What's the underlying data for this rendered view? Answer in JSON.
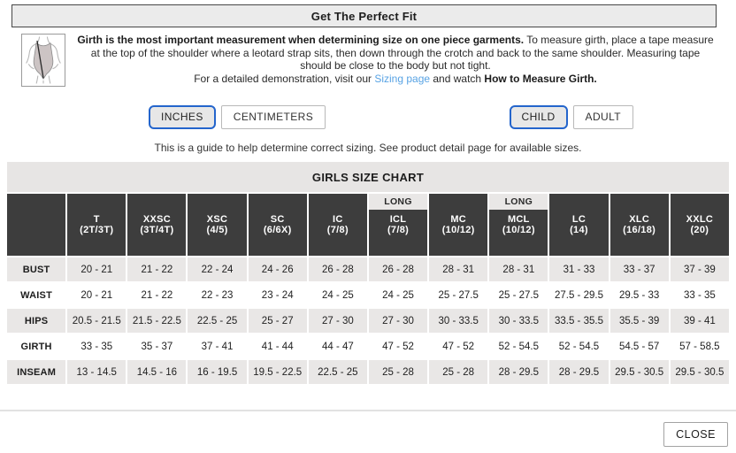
{
  "dialog": {
    "title": "Get The Perfect Fit",
    "intro_bold": "Girth is the most important measurement when determining size on one piece garments.",
    "intro_rest": " To measure girth, place a tape measure at the top of the shoulder where a leotard strap sits, then down through the crotch and back to the same shoulder. Measuring tape should be close to the body but not tight.",
    "demo_prefix": "For a detailed demonstration, visit our ",
    "demo_link": "Sizing page",
    "demo_middle": " and watch ",
    "demo_bold": "How to Measure Girth.",
    "note": "This is a guide to help determine correct sizing. See product detail page for available sizes."
  },
  "toggles": {
    "units": [
      {
        "label": "INCHES",
        "active": true
      },
      {
        "label": "CENTIMETERS",
        "active": false
      }
    ],
    "age": [
      {
        "label": "CHILD",
        "active": true
      },
      {
        "label": "ADULT",
        "active": false
      }
    ]
  },
  "chart": {
    "title": "GIRLS SIZE CHART",
    "long_label": "LONG",
    "columns": [
      {
        "name": "T",
        "size": "(2T/3T)",
        "long": false
      },
      {
        "name": "XXSC",
        "size": "(3T/4T)",
        "long": false
      },
      {
        "name": "XSC",
        "size": "(4/5)",
        "long": false
      },
      {
        "name": "SC",
        "size": "(6/6X)",
        "long": false
      },
      {
        "name": "IC",
        "size": "(7/8)",
        "long": false
      },
      {
        "name": "ICL",
        "size": "(7/8)",
        "long": true
      },
      {
        "name": "MC",
        "size": "(10/12)",
        "long": false
      },
      {
        "name": "MCL",
        "size": "(10/12)",
        "long": true
      },
      {
        "name": "LC",
        "size": "(14)",
        "long": false
      },
      {
        "name": "XLC",
        "size": "(16/18)",
        "long": false
      },
      {
        "name": "XXLC",
        "size": "(20)",
        "long": false
      }
    ],
    "rows": [
      {
        "label": "BUST",
        "values": [
          "20 - 21",
          "21 - 22",
          "22 - 24",
          "24 - 26",
          "26 - 28",
          "26 - 28",
          "28 - 31",
          "28 - 31",
          "31 - 33",
          "33 - 37",
          "37 - 39"
        ]
      },
      {
        "label": "WAIST",
        "values": [
          "20 - 21",
          "21 - 22",
          "22 - 23",
          "23 - 24",
          "24 - 25",
          "24 - 25",
          "25 - 27.5",
          "25 - 27.5",
          "27.5 - 29.5",
          "29.5 - 33",
          "33 - 35"
        ]
      },
      {
        "label": "HIPS",
        "values": [
          "20.5 - 21.5",
          "21.5 - 22.5",
          "22.5 - 25",
          "25 - 27",
          "27 - 30",
          "27 - 30",
          "30 - 33.5",
          "30 - 33.5",
          "33.5 - 35.5",
          "35.5 - 39",
          "39 - 41"
        ]
      },
      {
        "label": "GIRTH",
        "values": [
          "33 - 35",
          "35 - 37",
          "37 - 41",
          "41 - 44",
          "44 - 47",
          "47 - 52",
          "47 - 52",
          "52 - 54.5",
          "52 - 54.5",
          "54.5 - 57",
          "57 - 58.5"
        ]
      },
      {
        "label": "INSEAM",
        "values": [
          "13 - 14.5",
          "14.5 - 16",
          "16 - 19.5",
          "19.5 - 22.5",
          "22.5 - 25",
          "25 - 28",
          "25 - 28",
          "28 - 29.5",
          "28 - 29.5",
          "29.5 - 30.5",
          "29.5 - 30.5"
        ]
      }
    ]
  },
  "footer": {
    "close_label": "CLOSE"
  },
  "colors": {
    "accent_blue": "#2465cc",
    "link_blue": "#58a3e4",
    "header_dark": "#3d3d3d",
    "bar_gray": "#e7e5e4"
  }
}
